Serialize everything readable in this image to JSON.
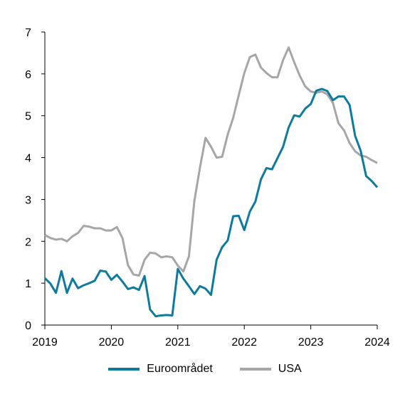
{
  "chart_data": {
    "type": "line",
    "x_range": [
      2019.0,
      2024.0
    ],
    "xticks": [
      "2019",
      "2020",
      "2021",
      "2022",
      "2023",
      "2024"
    ],
    "ylim": [
      0,
      7
    ],
    "yticks": [
      "0",
      "1",
      "2",
      "3",
      "4",
      "5",
      "6",
      "7"
    ],
    "grid": false,
    "legend_position": "bottom",
    "series": [
      {
        "name": "Euroområdet",
        "color": "#0e7a9e",
        "x": [
          2019.0,
          2019.083,
          2019.167,
          2019.25,
          2019.333,
          2019.417,
          2019.5,
          2019.583,
          2019.667,
          2019.75,
          2019.833,
          2019.917,
          2020.0,
          2020.083,
          2020.167,
          2020.25,
          2020.333,
          2020.417,
          2020.5,
          2020.583,
          2020.667,
          2020.75,
          2020.833,
          2020.917,
          2021.0,
          2021.083,
          2021.167,
          2021.25,
          2021.333,
          2021.417,
          2021.5,
          2021.583,
          2021.667,
          2021.75,
          2021.833,
          2021.917,
          2022.0,
          2022.083,
          2022.167,
          2022.25,
          2022.333,
          2022.417,
          2022.5,
          2022.583,
          2022.667,
          2022.75,
          2022.833,
          2022.917,
          2023.0,
          2023.083,
          2023.167,
          2023.25,
          2023.333,
          2023.417,
          2023.5,
          2023.583,
          2023.667,
          2023.75,
          2023.833,
          2023.917,
          2024.0
        ],
        "values": [
          1.12,
          0.99,
          0.77,
          1.29,
          0.77,
          1.11,
          0.88,
          0.95,
          1.0,
          1.06,
          1.3,
          1.28,
          1.08,
          1.2,
          1.04,
          0.86,
          0.9,
          0.84,
          1.17,
          0.37,
          0.21,
          0.23,
          0.24,
          0.23,
          1.34,
          1.11,
          0.93,
          0.74,
          0.93,
          0.87,
          0.72,
          1.56,
          1.86,
          2.02,
          2.6,
          2.61,
          2.27,
          2.71,
          2.95,
          3.48,
          3.75,
          3.72,
          3.99,
          4.26,
          4.72,
          5.01,
          4.98,
          5.17,
          5.28,
          5.6,
          5.64,
          5.59,
          5.37,
          5.46,
          5.46,
          5.26,
          4.52,
          4.17,
          3.56,
          3.44,
          3.29
        ]
      },
      {
        "name": "USA",
        "color": "#a6a6a6",
        "x": [
          2019.0,
          2019.083,
          2019.167,
          2019.25,
          2019.333,
          2019.417,
          2019.5,
          2019.583,
          2019.667,
          2019.75,
          2019.833,
          2019.917,
          2020.0,
          2020.083,
          2020.167,
          2020.25,
          2020.333,
          2020.417,
          2020.5,
          2020.583,
          2020.667,
          2020.75,
          2020.833,
          2020.917,
          2021.0,
          2021.083,
          2021.167,
          2021.25,
          2021.333,
          2021.417,
          2021.5,
          2021.583,
          2021.667,
          2021.75,
          2021.833,
          2021.917,
          2022.0,
          2022.083,
          2022.167,
          2022.25,
          2022.333,
          2022.417,
          2022.5,
          2022.583,
          2022.667,
          2022.75,
          2022.833,
          2022.917,
          2023.0,
          2023.083,
          2023.167,
          2023.25,
          2023.333,
          2023.417,
          2023.5,
          2023.583,
          2023.667,
          2023.75,
          2023.833,
          2023.917,
          2024.0
        ],
        "values": [
          2.15,
          2.08,
          2.04,
          2.06,
          2.0,
          2.12,
          2.2,
          2.37,
          2.35,
          2.31,
          2.31,
          2.26,
          2.26,
          2.34,
          2.08,
          1.43,
          1.21,
          1.18,
          1.56,
          1.73,
          1.71,
          1.62,
          1.64,
          1.62,
          1.42,
          1.28,
          1.64,
          2.97,
          3.76,
          4.47,
          4.26,
          4.0,
          4.02,
          4.55,
          4.95,
          5.49,
          6.02,
          6.4,
          6.46,
          6.15,
          6.02,
          5.92,
          5.92,
          6.33,
          6.63,
          6.28,
          5.96,
          5.7,
          5.58,
          5.55,
          5.58,
          5.51,
          5.31,
          4.82,
          4.65,
          4.35,
          4.15,
          4.05,
          4.02,
          3.94,
          3.87
        ]
      }
    ]
  }
}
